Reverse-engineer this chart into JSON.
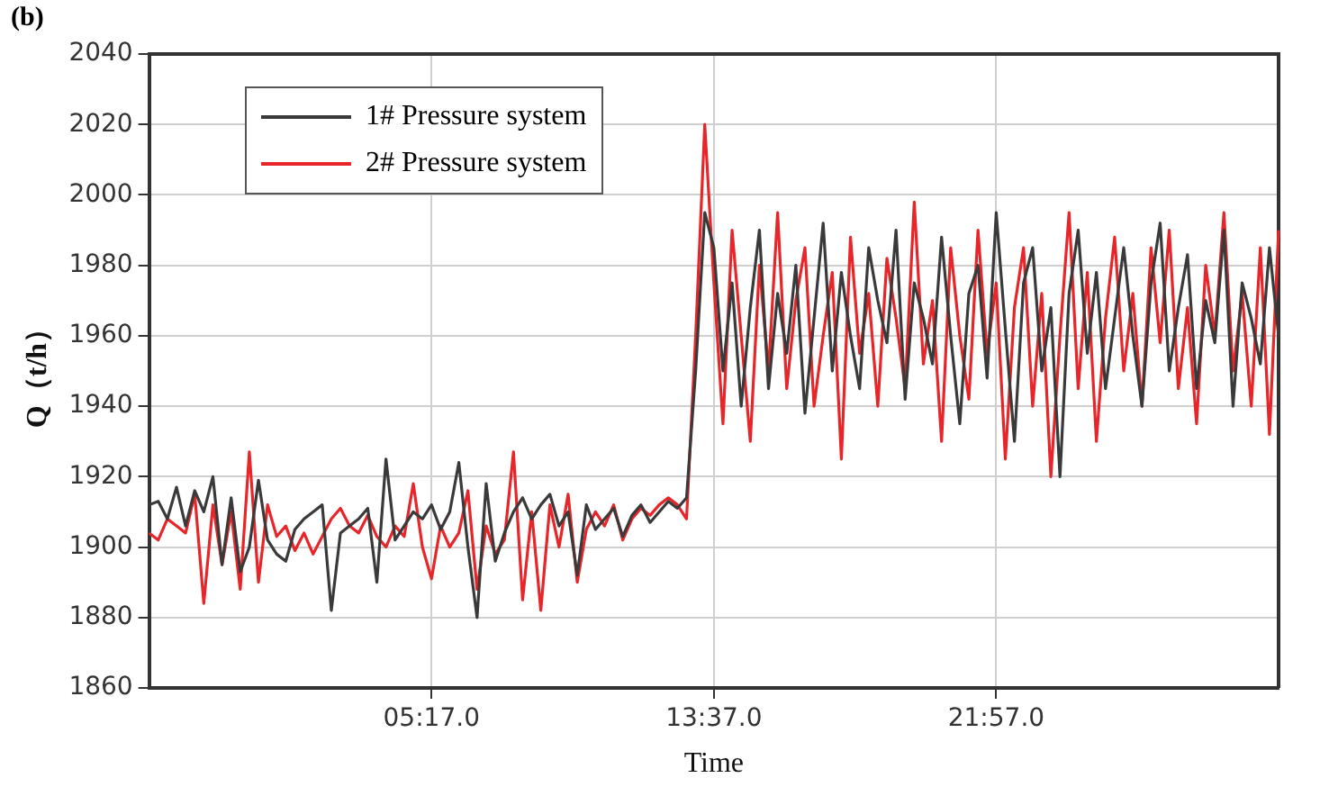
{
  "chart_data": {
    "type": "line",
    "title": "(b)",
    "xlabel": "Time",
    "ylabel": "Q（t/h）",
    "categories": [
      null,
      null,
      null,
      null,
      null,
      null,
      null,
      null,
      null,
      null,
      null,
      null,
      null,
      null,
      null,
      null,
      null,
      null,
      null,
      null,
      null,
      null,
      null,
      null,
      null,
      null,
      null,
      null,
      null,
      null,
      null,
      "05:17.0",
      null,
      null,
      null,
      null,
      null,
      null,
      null,
      null,
      null,
      null,
      null,
      null,
      null,
      null,
      null,
      null,
      null,
      null,
      null,
      null,
      null,
      null,
      null,
      null,
      null,
      null,
      null,
      null,
      null,
      null,
      "13:37.0",
      null,
      null,
      null,
      null,
      null,
      null,
      null,
      null,
      null,
      null,
      null,
      null,
      null,
      null,
      null,
      null,
      null,
      null,
      null,
      null,
      null,
      null,
      null,
      null,
      null,
      null,
      null,
      null,
      null,
      null,
      "21:57.0",
      null,
      null,
      null,
      null,
      null,
      null,
      null,
      null,
      null,
      null,
      null,
      null,
      null,
      null,
      null,
      null,
      null,
      null,
      null,
      null,
      null,
      null,
      null,
      null,
      null,
      null,
      null,
      null,
      null,
      null,
      null
    ],
    "series": [
      {
        "name": "1# Pressure system",
        "color": "#3a3a3a",
        "values": [
          1912,
          1913,
          1908,
          1917,
          1906,
          1916,
          1910,
          1920,
          1895,
          1914,
          1893,
          1900,
          1919,
          1902,
          1898,
          1896,
          1905,
          1908,
          1910,
          1912,
          1882,
          1904,
          1906,
          1908,
          1911,
          1890,
          1925,
          1902,
          1906,
          1910,
          1908,
          1912,
          1905,
          1910,
          1924,
          1900,
          1880,
          1918,
          1896,
          1904,
          1910,
          1914,
          1908,
          1912,
          1915,
          1906,
          1910,
          1892,
          1912,
          1905,
          1908,
          1911,
          1903,
          1909,
          1912,
          1907,
          1910,
          1913,
          1911,
          1914,
          1950,
          1995,
          1985,
          1950,
          1975,
          1940,
          1968,
          1990,
          1945,
          1972,
          1955,
          1980,
          1938,
          1965,
          1992,
          1950,
          1978,
          1960,
          1945,
          1985,
          1970,
          1958,
          1990,
          1942,
          1975,
          1965,
          1952,
          1988,
          1960,
          1935,
          1972,
          1980,
          1948,
          1995,
          1962,
          1930,
          1975,
          1985,
          1950,
          1968,
          1920,
          1972,
          1990,
          1955,
          1978,
          1945,
          1965,
          1985,
          1960,
          1940,
          1975,
          1992,
          1950,
          1968,
          1983,
          1945,
          1970,
          1958,
          1990,
          1940,
          1975,
          1965,
          1952,
          1985,
          1960
        ]
      },
      {
        "name": "2# Pressure system",
        "color": "#e8262a",
        "values": [
          1904,
          1902,
          1908,
          1906,
          1904,
          1915,
          1884,
          1912,
          1895,
          1910,
          1888,
          1927,
          1890,
          1912,
          1903,
          1906,
          1899,
          1904,
          1898,
          1903,
          1908,
          1911,
          1906,
          1904,
          1909,
          1903,
          1900,
          1906,
          1903,
          1918,
          1900,
          1891,
          1906,
          1900,
          1904,
          1916,
          1888,
          1906,
          1898,
          1902,
          1927,
          1885,
          1910,
          1882,
          1912,
          1900,
          1915,
          1890,
          1905,
          1910,
          1906,
          1912,
          1902,
          1908,
          1911,
          1909,
          1912,
          1914,
          1912,
          1908,
          1960,
          2020,
          1975,
          1935,
          1990,
          1960,
          1930,
          1980,
          1950,
          1995,
          1945,
          1970,
          1985,
          1940,
          1960,
          1978,
          1925,
          1988,
          1955,
          1972,
          1940,
          1982,
          1965,
          1945,
          1998,
          1952,
          1970,
          1930,
          1985,
          1960,
          1942,
          1990,
          1955,
          1975,
          1925,
          1968,
          1985,
          1940,
          1972,
          1920,
          1960,
          1995,
          1945,
          1978,
          1930,
          1965,
          1988,
          1950,
          1972,
          1940,
          1985,
          1958,
          1990,
          1945,
          1968,
          1935,
          1980,
          1960,
          1995,
          1950,
          1972,
          1940,
          1985,
          1932,
          1990
        ]
      }
    ],
    "ylim": [
      1860,
      2040
    ],
    "yticks": [
      1860,
      1880,
      1900,
      1920,
      1940,
      1960,
      1980,
      2000,
      2020,
      2040
    ],
    "grid": true,
    "legend": "top left",
    "marker": "none",
    "line_style": "solid"
  }
}
